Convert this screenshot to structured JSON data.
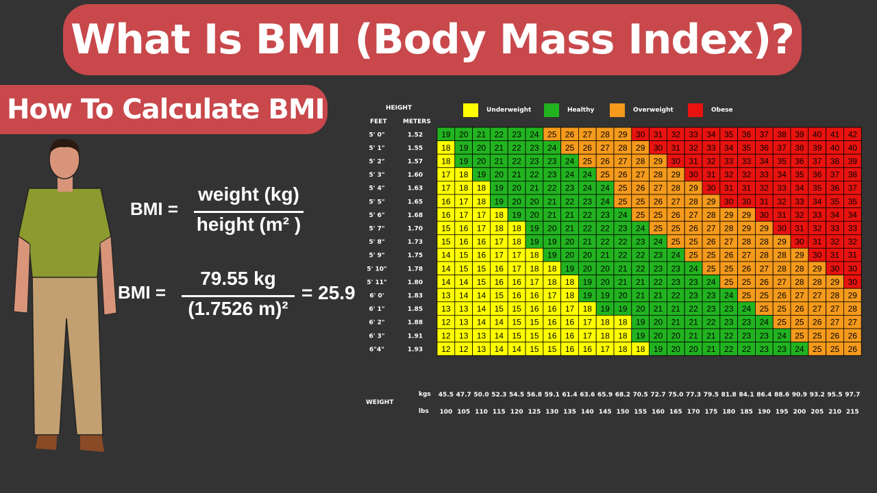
{
  "title": "What Is BMI (Body Mass Index)?",
  "subtitle": "How To Calculate BMI",
  "formula1": {
    "lhs": "BMI =",
    "numerator": "weight (kg)",
    "denominator": "height (m² )"
  },
  "formula2": {
    "lhs": "BMI =",
    "numerator": "79.55 kg",
    "denominator": "(1.7526 m)²",
    "result": "= 25.9"
  },
  "colors": {
    "underweight": "#ffff00",
    "healthy": "#22b320",
    "overweight": "#f59a1c",
    "obese": "#e8130f",
    "background": "#333333",
    "title_box": "#c8484b"
  },
  "chart_data": {
    "type": "heatmap",
    "headers": {
      "height": "HEIGHT",
      "feet": "FEET",
      "meters": "METERS",
      "weight": "WEIGHT",
      "kgs": "kgs",
      "lbs": "lbs"
    },
    "legend": [
      {
        "label": "Underweight",
        "color": "#ffff00"
      },
      {
        "label": "Healthy",
        "color": "#22b320"
      },
      {
        "label": "Overweight",
        "color": "#f59a1c"
      },
      {
        "label": "Obese",
        "color": "#e8130f"
      }
    ],
    "feet": [
      "5' 0\"",
      "5' 1\"",
      "5' 2\"",
      "5' 3\"",
      "5' 4\"",
      "5' 5\"",
      "5' 6\"",
      "5' 7\"",
      "5' 8\"",
      "5' 9\"",
      "5' 10\"",
      "5' 11\"",
      "6' 0'",
      "6' 1\"",
      "6' 2\"",
      "6' 3\"",
      "6\"4\""
    ],
    "meters": [
      "1.52",
      "1.55",
      "1.57",
      "1.60",
      "1.63",
      "1.65",
      "1.68",
      "1.70",
      "1.73",
      "1.75",
      "1.78",
      "1.80",
      "1.83",
      "1.85",
      "1.88",
      "1.91",
      "1.93"
    ],
    "kgs": [
      "45.5",
      "47.7",
      "50.0",
      "52.3",
      "54.5",
      "56.8",
      "59.1",
      "61.4",
      "63.6",
      "65.9",
      "68.2",
      "70.5",
      "72.7",
      "75.0",
      "77.3",
      "79.5",
      "81.8",
      "84.1",
      "86.4",
      "88.6",
      "90.9",
      "93.2",
      "95.5",
      "97.7"
    ],
    "lbs": [
      "100",
      "105",
      "110",
      "115",
      "120",
      "125",
      "130",
      "135",
      "140",
      "145",
      "150",
      "155",
      "160",
      "165",
      "170",
      "175",
      "180",
      "185",
      "190",
      "195",
      "200",
      "205",
      "210",
      "215"
    ],
    "values": [
      [
        19,
        20,
        21,
        22,
        23,
        24,
        25,
        26,
        27,
        28,
        29,
        30,
        31,
        32,
        33,
        34,
        35,
        36,
        37,
        38,
        39,
        40,
        41,
        42
      ],
      [
        18,
        19,
        20,
        21,
        22,
        23,
        24,
        25,
        26,
        27,
        28,
        29,
        30,
        31,
        32,
        33,
        34,
        35,
        36,
        37,
        38,
        39,
        40,
        40
      ],
      [
        18,
        19,
        20,
        21,
        22,
        23,
        23,
        24,
        25,
        26,
        27,
        28,
        29,
        30,
        31,
        32,
        33,
        33,
        34,
        35,
        36,
        37,
        38,
        39
      ],
      [
        17,
        18,
        19,
        20,
        21,
        22,
        23,
        24,
        24,
        25,
        26,
        27,
        28,
        29,
        30,
        31,
        32,
        32,
        33,
        34,
        35,
        36,
        37,
        38
      ],
      [
        17,
        18,
        18,
        19,
        20,
        21,
        22,
        23,
        24,
        24,
        25,
        26,
        27,
        28,
        29,
        30,
        31,
        31,
        32,
        33,
        34,
        35,
        36,
        37
      ],
      [
        16,
        17,
        18,
        19,
        20,
        20,
        21,
        22,
        23,
        24,
        25,
        25,
        26,
        27,
        28,
        29,
        30,
        30,
        31,
        32,
        33,
        34,
        35,
        35
      ],
      [
        16,
        17,
        17,
        18,
        19,
        20,
        21,
        21,
        22,
        23,
        24,
        25,
        25,
        26,
        27,
        28,
        29,
        29,
        30,
        31,
        32,
        33,
        34,
        34
      ],
      [
        15,
        16,
        17,
        18,
        18,
        19,
        20,
        21,
        22,
        22,
        23,
        24,
        25,
        25,
        26,
        27,
        28,
        29,
        29,
        30,
        31,
        32,
        33,
        33
      ],
      [
        15,
        16,
        16,
        17,
        18,
        19,
        19,
        20,
        21,
        22,
        22,
        23,
        24,
        25,
        25,
        26,
        27,
        28,
        28,
        29,
        30,
        31,
        32,
        32
      ],
      [
        14,
        15,
        16,
        17,
        17,
        18,
        19,
        20,
        20,
        21,
        22,
        22,
        23,
        24,
        25,
        25,
        26,
        27,
        28,
        28,
        29,
        30,
        31,
        31
      ],
      [
        14,
        15,
        15,
        16,
        17,
        18,
        18,
        19,
        20,
        20,
        21,
        22,
        23,
        23,
        24,
        25,
        25,
        26,
        27,
        28,
        28,
        29,
        30,
        30
      ],
      [
        14,
        14,
        15,
        16,
        16,
        17,
        18,
        18,
        19,
        20,
        21,
        21,
        22,
        23,
        23,
        24,
        25,
        25,
        26,
        27,
        28,
        28,
        29,
        30
      ],
      [
        13,
        14,
        14,
        15,
        16,
        16,
        17,
        18,
        19,
        19,
        20,
        21,
        21,
        22,
        23,
        23,
        24,
        25,
        25,
        26,
        27,
        27,
        28,
        29
      ],
      [
        13,
        13,
        14,
        15,
        15,
        16,
        16,
        17,
        18,
        19,
        19,
        20,
        21,
        21,
        22,
        23,
        23,
        24,
        25,
        25,
        26,
        27,
        27,
        28
      ],
      [
        12,
        13,
        14,
        14,
        15,
        15,
        16,
        16,
        17,
        18,
        18,
        19,
        20,
        21,
        21,
        22,
        23,
        23,
        24,
        25,
        25,
        26,
        27,
        27
      ],
      [
        12,
        13,
        13,
        14,
        15,
        15,
        16,
        16,
        17,
        18,
        18,
        19,
        20,
        20,
        21,
        21,
        22,
        23,
        23,
        24,
        25,
        25,
        26,
        26
      ],
      [
        12,
        12,
        13,
        14,
        14,
        15,
        15,
        16,
        16,
        17,
        18,
        18,
        19,
        20,
        20,
        21,
        22,
        22,
        23,
        23,
        24,
        25,
        25,
        26
      ]
    ],
    "category_thresholds": {
      "healthy": 19,
      "overweight": 25,
      "obese": 30
    }
  }
}
